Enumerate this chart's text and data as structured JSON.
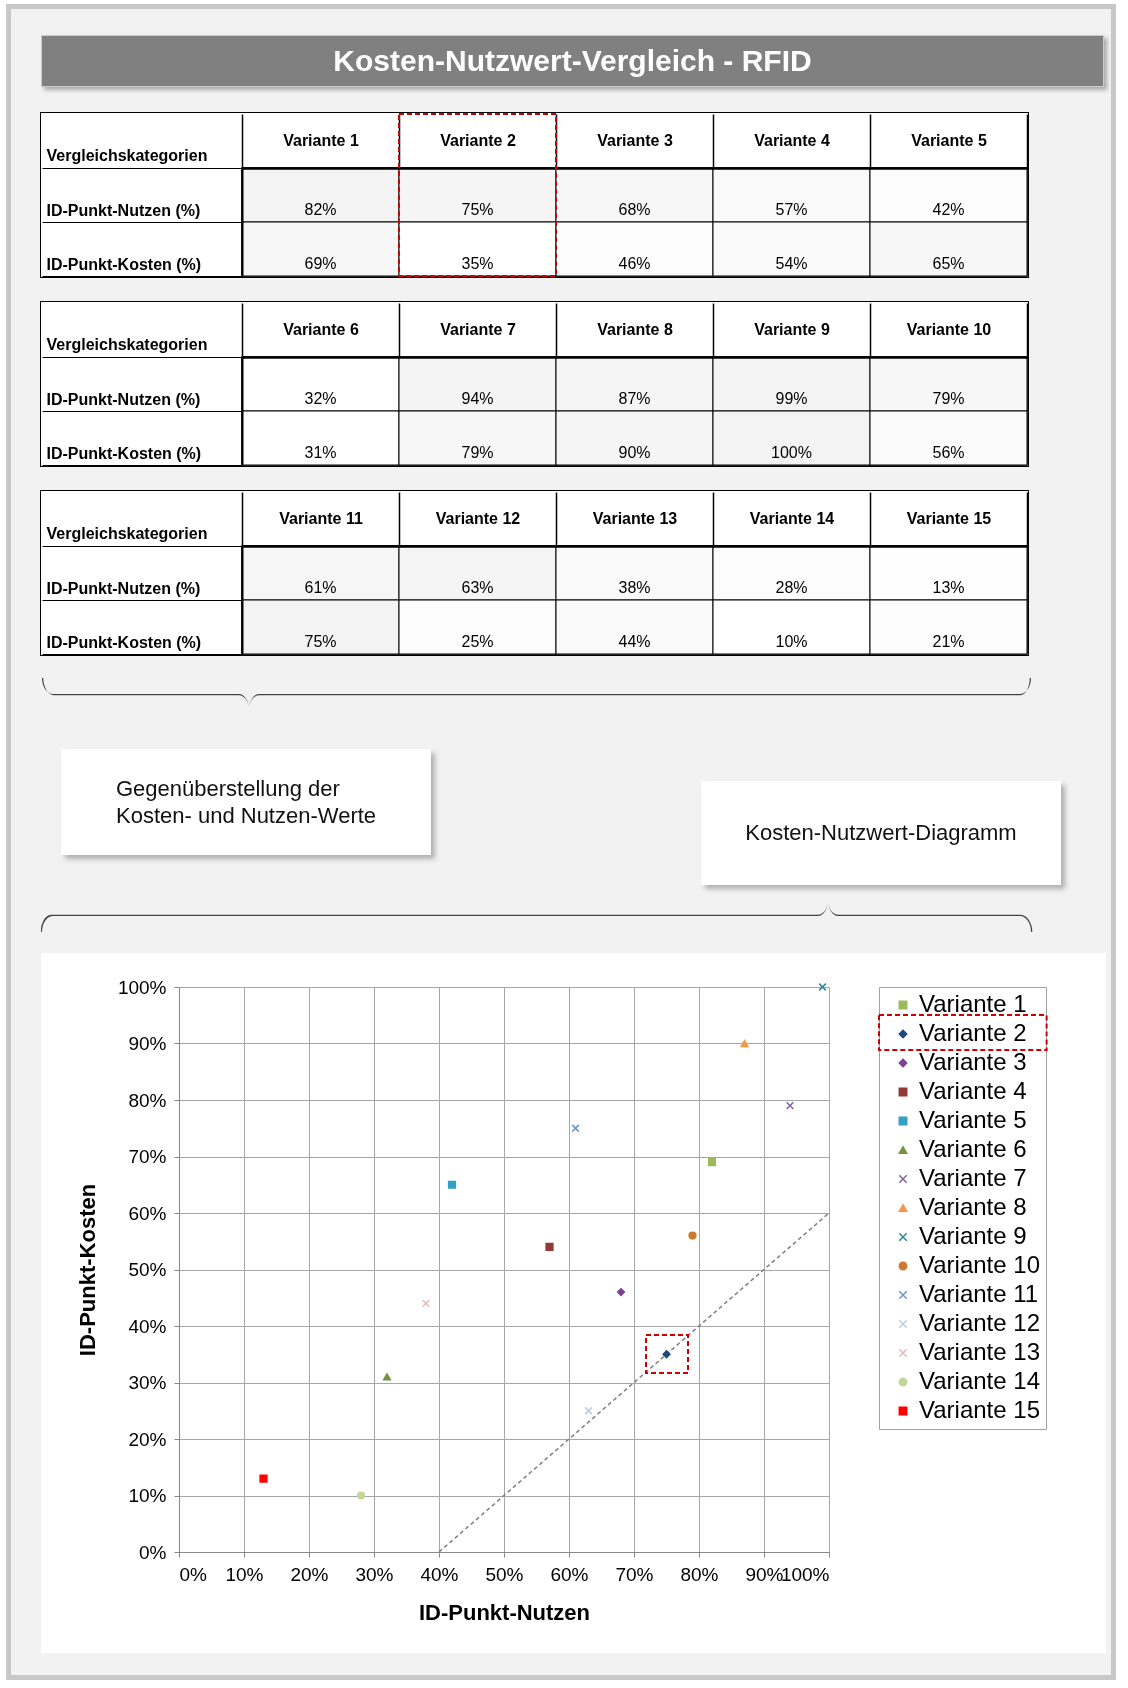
{
  "chart_data": [
    {
      "type": "heatmap",
      "title": "Kosten-Nutzwert-Vergleich - RFID",
      "ylabel": "Vergleichskategorien",
      "categories": [
        "Variante 1",
        "Variante 2",
        "Variante 3",
        "Variante 4",
        "Variante 5"
      ],
      "y_categories": [
        "ID-Punkt-Nutzen (%)",
        "ID-Punkt-Kosten (%)"
      ],
      "cells": [
        [
          82,
          75,
          68,
          57,
          42
        ],
        [
          69,
          35,
          46,
          54,
          65
        ]
      ],
      "cell_labels": [
        [
          "82%",
          "75%",
          "68%",
          "57%",
          "42%"
        ],
        [
          "69%",
          "35%",
          "46%",
          "54%",
          "65%"
        ]
      ]
    },
    {
      "type": "heatmap",
      "ylabel": "Vergleichskategorien",
      "categories": [
        "Variante 6",
        "Variante 7",
        "Variante 8",
        "Variante 9",
        "Variante 10"
      ],
      "y_categories": [
        "ID-Punkt-Nutzen (%)",
        "ID-Punkt-Kosten (%)"
      ],
      "cells": [
        [
          32,
          94,
          87,
          99,
          79
        ],
        [
          31,
          79,
          90,
          100,
          56
        ]
      ],
      "cell_labels": [
        [
          "32%",
          "94%",
          "87%",
          "99%",
          "79%"
        ],
        [
          "31%",
          "79%",
          "90%",
          "100%",
          "56%"
        ]
      ]
    },
    {
      "type": "heatmap",
      "ylabel": "Vergleichskategorien",
      "categories": [
        "Variante 11",
        "Variante 12",
        "Variante 13",
        "Variante 14",
        "Variante 15"
      ],
      "y_categories": [
        "ID-Punkt-Nutzen (%)",
        "ID-Punkt-Kosten (%)"
      ],
      "cells": [
        [
          61,
          63,
          38,
          28,
          13
        ],
        [
          75,
          25,
          44,
          10,
          21
        ]
      ],
      "cell_labels": [
        [
          "61%",
          "63%",
          "38%",
          "28%",
          "13%"
        ],
        [
          "75%",
          "25%",
          "44%",
          "10%",
          "21%"
        ]
      ],
      "annotations": [
        "Gegenüberstellung der Kosten- und Nutzen-Werte"
      ]
    },
    {
      "type": "scatter",
      "title": "Kosten-Nutzwert-Diagramm",
      "xlabel": "ID-Punkt-Nutzen",
      "ylabel": "ID-Punkt-Kosten",
      "xlim": [
        0,
        100
      ],
      "ylim": [
        0,
        100
      ],
      "xticks": [
        {
          "value": 0,
          "label": "0%"
        },
        {
          "value": 10,
          "label": "10%"
        },
        {
          "value": 20,
          "label": "20%"
        },
        {
          "value": 30,
          "label": "30%"
        },
        {
          "value": 40,
          "label": "40%"
        },
        {
          "value": 50,
          "label": "50%"
        },
        {
          "value": 60,
          "label": "60%"
        },
        {
          "value": 70,
          "label": "70%"
        },
        {
          "value": 80,
          "label": "80%"
        },
        {
          "value": 90,
          "label": "90%"
        },
        {
          "value": 100,
          "label": "100%"
        }
      ],
      "yticks": [
        {
          "value": 0,
          "label": "0%"
        },
        {
          "value": 10,
          "label": "10%"
        },
        {
          "value": 20,
          "label": "20%"
        },
        {
          "value": 30,
          "label": "30%"
        },
        {
          "value": 40,
          "label": "40%"
        },
        {
          "value": 50,
          "label": "50%"
        },
        {
          "value": 60,
          "label": "60%"
        },
        {
          "value": 70,
          "label": "70%"
        },
        {
          "value": 80,
          "label": "80%"
        },
        {
          "value": 90,
          "label": "90%"
        },
        {
          "value": 100,
          "label": "100%"
        }
      ],
      "grid": true,
      "legend": "right",
      "series": [
        {
          "type": "line",
          "color": "#7f7f7f",
          "line_style": "dashed",
          "marker": "none",
          "x": [
            40,
            100
          ],
          "values": [
            0,
            60
          ]
        },
        {
          "name": "Variante 1",
          "color": "#9bbb59",
          "marker": "square",
          "x": [
            82
          ],
          "values": [
            69
          ]
        },
        {
          "name": "Variante 2",
          "color": "#1f497d",
          "marker": "diamond",
          "x": [
            75
          ],
          "values": [
            35
          ]
        },
        {
          "name": "Variante 3",
          "color": "#7f3f98",
          "marker": "diamond",
          "x": [
            68
          ],
          "values": [
            46
          ]
        },
        {
          "name": "Variante 4",
          "color": "#953735",
          "marker": "square",
          "x": [
            57
          ],
          "values": [
            54
          ]
        },
        {
          "name": "Variante 5",
          "color": "#31a0c4",
          "marker": "square",
          "x": [
            42
          ],
          "values": [
            65
          ]
        },
        {
          "name": "Variante 6",
          "color": "#77933c",
          "marker": "triangle",
          "x": [
            32
          ],
          "values": [
            31
          ]
        },
        {
          "name": "Variante 7",
          "color": "#8064a2",
          "marker": "cross",
          "x": [
            94
          ],
          "values": [
            79
          ]
        },
        {
          "name": "Variante 8",
          "color": "#f79646",
          "marker": "triangle",
          "x": [
            87
          ],
          "values": [
            90
          ]
        },
        {
          "name": "Variante 9",
          "color": "#31859c",
          "marker": "cross",
          "x": [
            99
          ],
          "values": [
            100
          ]
        },
        {
          "name": "Variante 10",
          "color": "#d0782f",
          "marker": "circle",
          "x": [
            79
          ],
          "values": [
            56
          ]
        },
        {
          "name": "Variante 11",
          "color": "#6f93cf",
          "marker": "cross",
          "x": [
            61
          ],
          "values": [
            75
          ]
        },
        {
          "name": "Variante 12",
          "color": "#b9cde5",
          "marker": "cross",
          "x": [
            63
          ],
          "values": [
            25
          ]
        },
        {
          "name": "Variante 13",
          "color": "#e6b9b8",
          "marker": "cross",
          "x": [
            38
          ],
          "values": [
            44
          ]
        },
        {
          "name": "Variante 14",
          "color": "#c3d69b",
          "marker": "circle",
          "x": [
            28
          ],
          "values": [
            10
          ]
        },
        {
          "name": "Variante 15",
          "color": "#ff0000",
          "marker": "square",
          "x": [
            13
          ],
          "values": [
            13
          ]
        }
      ]
    }
  ]
}
